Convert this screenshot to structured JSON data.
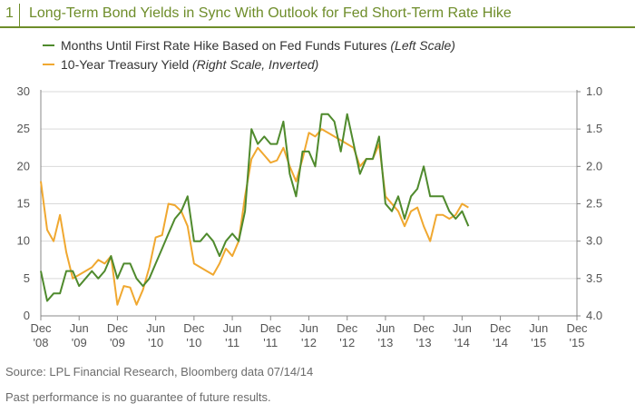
{
  "figure": {
    "number": "1",
    "title": "Long-Term Bond Yields in Sync With Outlook for Fed Short-Term Rate Hike"
  },
  "footer": {
    "source": "Source: LPL Financial Research, Bloomberg data   07/14/14",
    "disclaimer": "Past performance is no guarantee of future results."
  },
  "colors": {
    "accent": "#6e8d2a",
    "series_green": "#4f8a2d",
    "series_orange": "#f0a830",
    "axis": "#888888"
  },
  "chart_data": {
    "type": "line",
    "x_ticks": [
      {
        "month": 0,
        "line1": "Dec",
        "line2": "'08"
      },
      {
        "month": 6,
        "line1": "Jun",
        "line2": "'09"
      },
      {
        "month": 12,
        "line1": "Dec",
        "line2": "'09"
      },
      {
        "month": 18,
        "line1": "Jun",
        "line2": "'10"
      },
      {
        "month": 24,
        "line1": "Dec",
        "line2": "'10"
      },
      {
        "month": 30,
        "line1": "Jun",
        "line2": "'11"
      },
      {
        "month": 36,
        "line1": "Dec",
        "line2": "'11"
      },
      {
        "month": 42,
        "line1": "Jun",
        "line2": "'12"
      },
      {
        "month": 48,
        "line1": "Dec",
        "line2": "'12"
      },
      {
        "month": 54,
        "line1": "Jun",
        "line2": "'13"
      },
      {
        "month": 60,
        "line1": "Dec",
        "line2": "'13"
      },
      {
        "month": 66,
        "line1": "Jun",
        "line2": "'14"
      },
      {
        "month": 72,
        "line1": "Dec",
        "line2": "'14"
      },
      {
        "month": 78,
        "line1": "Jun",
        "line2": "'15"
      },
      {
        "month": 84,
        "line1": "Dec",
        "line2": "'15"
      }
    ],
    "xlim": [
      0,
      84
    ],
    "left_axis": {
      "ylim": [
        0,
        30
      ],
      "ticks": [
        "0",
        "5",
        "10",
        "15",
        "20",
        "25",
        "30"
      ]
    },
    "right_axis": {
      "ylim": [
        4.0,
        1.0
      ],
      "inverted": true,
      "ticks": [
        "4.0",
        "3.5",
        "3.0",
        "2.5",
        "2.0",
        "1.5",
        "1.0"
      ]
    },
    "grid": "horizontal",
    "legend_position": "top-left",
    "series": [
      {
        "name": "Months Until First Rate Hike Based on Fed Funds Futures",
        "note": "(Left Scale)",
        "axis": "left",
        "color": "#4f8a2d",
        "points": [
          [
            0,
            6
          ],
          [
            1,
            2
          ],
          [
            2,
            3
          ],
          [
            3,
            3
          ],
          [
            4,
            6
          ],
          [
            5,
            6
          ],
          [
            6,
            4
          ],
          [
            7,
            5
          ],
          [
            8,
            6
          ],
          [
            9,
            5
          ],
          [
            10,
            6
          ],
          [
            11,
            8
          ],
          [
            12,
            5
          ],
          [
            13,
            7
          ],
          [
            14,
            7
          ],
          [
            15,
            5
          ],
          [
            16,
            4
          ],
          [
            17,
            5
          ],
          [
            18,
            7
          ],
          [
            19,
            9
          ],
          [
            20,
            11
          ],
          [
            21,
            13
          ],
          [
            22,
            14
          ],
          [
            23,
            16
          ],
          [
            24,
            10
          ],
          [
            25,
            10
          ],
          [
            26,
            11
          ],
          [
            27,
            10
          ],
          [
            28,
            8
          ],
          [
            29,
            10
          ],
          [
            30,
            11
          ],
          [
            31,
            10
          ],
          [
            32,
            14
          ],
          [
            33,
            25
          ],
          [
            34,
            23
          ],
          [
            35,
            24
          ],
          [
            36,
            23
          ],
          [
            37,
            23
          ],
          [
            38,
            26
          ],
          [
            39,
            19
          ],
          [
            40,
            16
          ],
          [
            41,
            22
          ],
          [
            42,
            22
          ],
          [
            43,
            20
          ],
          [
            44,
            27
          ],
          [
            45,
            27
          ],
          [
            46,
            26
          ],
          [
            47,
            22
          ],
          [
            48,
            27
          ],
          [
            49,
            23
          ],
          [
            50,
            19
          ],
          [
            51,
            21
          ],
          [
            52,
            21
          ],
          [
            53,
            24
          ],
          [
            54,
            15
          ],
          [
            55,
            14
          ],
          [
            56,
            16
          ],
          [
            57,
            13
          ],
          [
            58,
            16
          ],
          [
            59,
            17
          ],
          [
            60,
            20
          ],
          [
            61,
            16
          ],
          [
            62,
            16
          ],
          [
            63,
            16
          ],
          [
            64,
            14
          ],
          [
            65,
            13
          ],
          [
            66,
            14
          ],
          [
            67,
            12
          ]
        ]
      },
      {
        "name": "10-Year Treasury Yield",
        "note": "(Right Scale, Inverted)",
        "axis": "right",
        "color": "#f0a830",
        "points": [
          [
            0,
            2.2
          ],
          [
            1,
            2.85
          ],
          [
            2,
            3.0
          ],
          [
            3,
            2.65
          ],
          [
            4,
            3.15
          ],
          [
            5,
            3.5
          ],
          [
            6,
            3.45
          ],
          [
            7,
            3.4
          ],
          [
            8,
            3.35
          ],
          [
            9,
            3.25
          ],
          [
            10,
            3.3
          ],
          [
            11,
            3.2
          ],
          [
            12,
            3.85
          ],
          [
            13,
            3.6
          ],
          [
            14,
            3.62
          ],
          [
            15,
            3.85
          ],
          [
            16,
            3.65
          ],
          [
            17,
            3.35
          ],
          [
            18,
            2.95
          ],
          [
            19,
            2.92
          ],
          [
            20,
            2.5
          ],
          [
            21,
            2.52
          ],
          [
            22,
            2.6
          ],
          [
            23,
            2.8
          ],
          [
            24,
            3.3
          ],
          [
            25,
            3.35
          ],
          [
            26,
            3.4
          ],
          [
            27,
            3.45
          ],
          [
            28,
            3.3
          ],
          [
            29,
            3.1
          ],
          [
            30,
            3.2
          ],
          [
            31,
            3.0
          ],
          [
            32,
            2.4
          ],
          [
            33,
            1.9
          ],
          [
            34,
            1.75
          ],
          [
            35,
            1.85
          ],
          [
            36,
            1.95
          ],
          [
            37,
            1.92
          ],
          [
            38,
            1.75
          ],
          [
            39,
            2.0
          ],
          [
            40,
            2.2
          ],
          [
            41,
            1.9
          ],
          [
            42,
            1.55
          ],
          [
            43,
            1.6
          ],
          [
            44,
            1.5
          ],
          [
            45,
            1.55
          ],
          [
            46,
            1.6
          ],
          [
            47,
            1.65
          ],
          [
            48,
            1.7
          ],
          [
            49,
            1.75
          ],
          [
            50,
            2.0
          ],
          [
            51,
            1.9
          ],
          [
            52,
            1.9
          ],
          [
            53,
            1.7
          ],
          [
            54,
            2.4
          ],
          [
            55,
            2.5
          ],
          [
            56,
            2.6
          ],
          [
            57,
            2.8
          ],
          [
            58,
            2.6
          ],
          [
            59,
            2.55
          ],
          [
            60,
            2.8
          ],
          [
            61,
            3.0
          ],
          [
            62,
            2.65
          ],
          [
            63,
            2.65
          ],
          [
            64,
            2.7
          ],
          [
            65,
            2.65
          ],
          [
            66,
            2.5
          ],
          [
            67,
            2.55
          ]
        ]
      }
    ]
  }
}
